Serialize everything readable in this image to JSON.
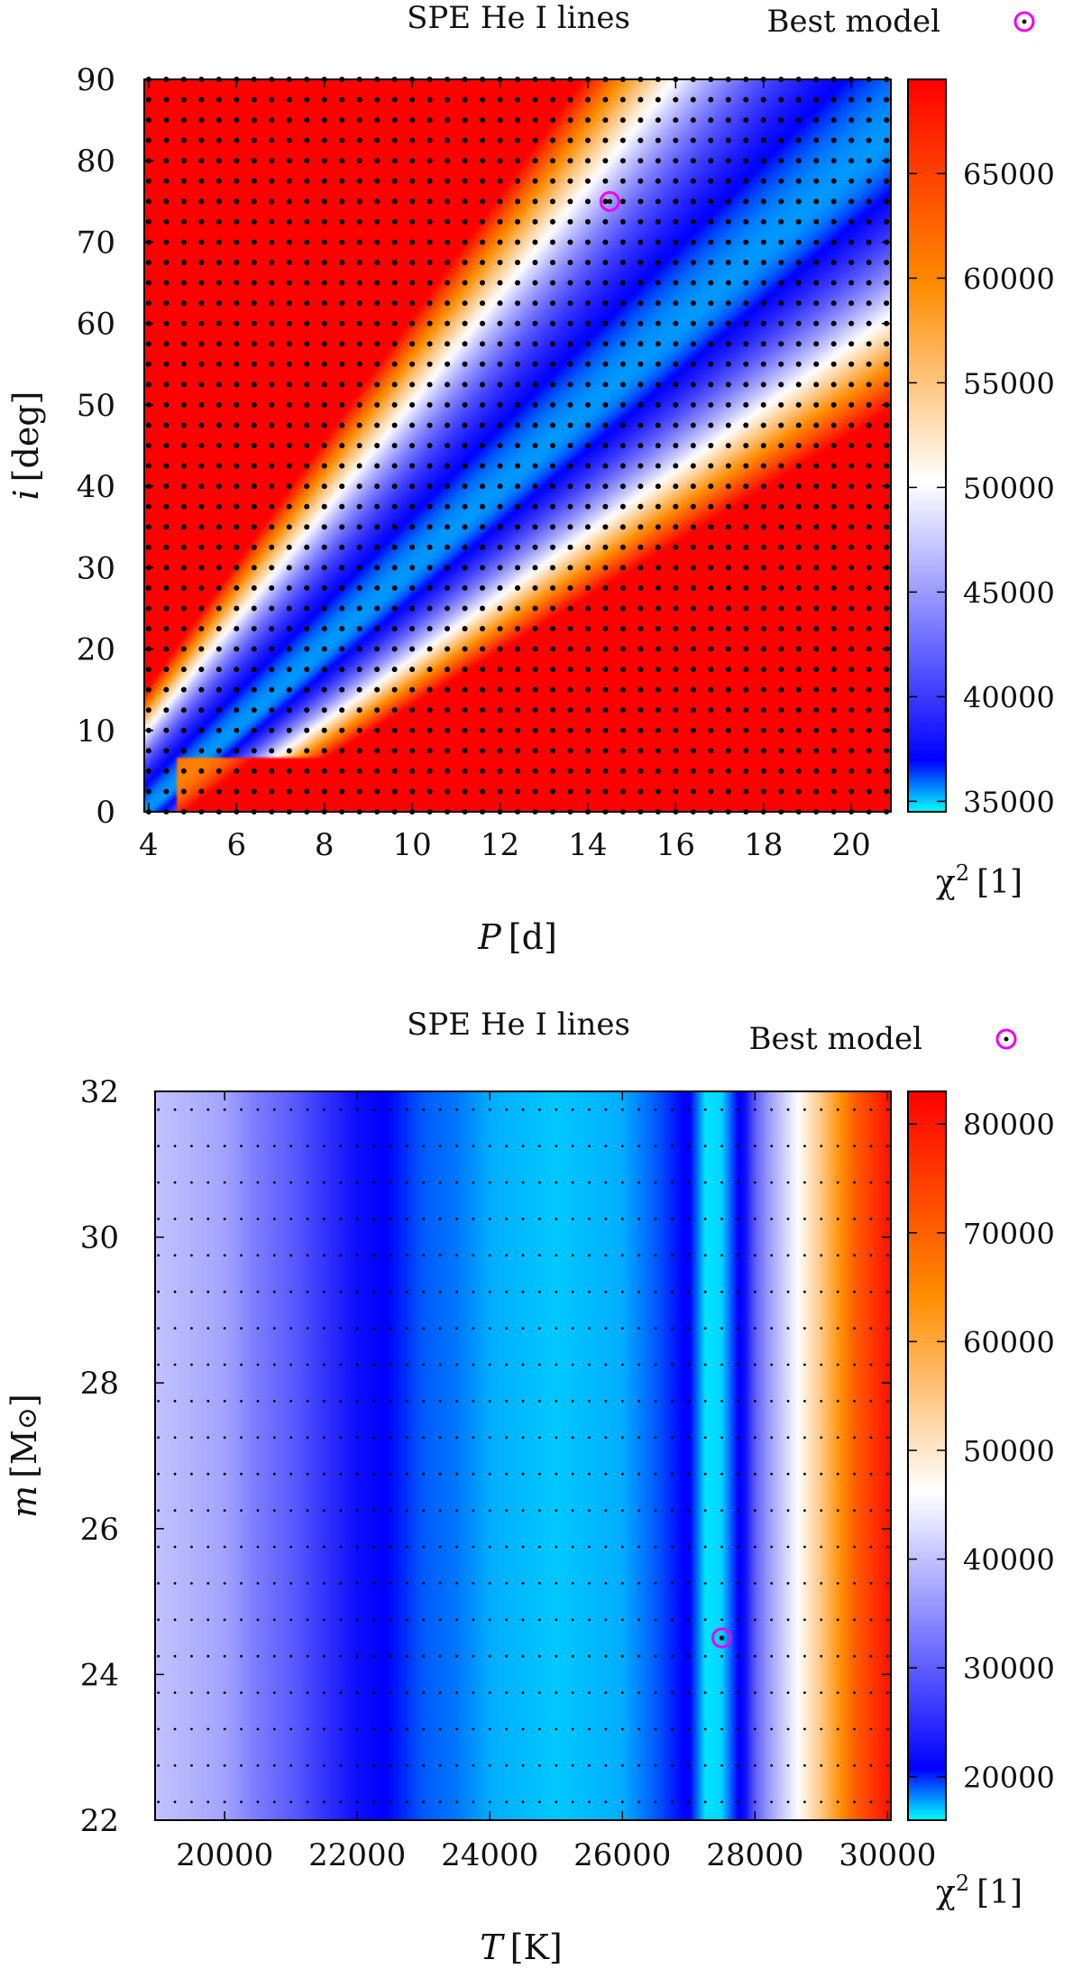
{
  "chart_data": [
    {
      "type": "heatmap",
      "title": "SPE He I lines",
      "legend_label": "Best model",
      "legend_placement": "top-right",
      "x": {
        "var": "P",
        "unit": "[d]",
        "range": [
          3.9,
          20.9
        ],
        "ticks": [
          "4",
          "6",
          "8",
          "10",
          "12",
          "14",
          "16",
          "18",
          "20"
        ],
        "tick_values": [
          4,
          6,
          8,
          10,
          12,
          14,
          16,
          18,
          20
        ]
      },
      "y": {
        "var": "i",
        "unit": "[deg]",
        "range": [
          0,
          90
        ],
        "ticks": [
          "0",
          "10",
          "20",
          "30",
          "40",
          "50",
          "60",
          "70",
          "80",
          "90"
        ],
        "tick_values": [
          0,
          10,
          20,
          30,
          40,
          50,
          60,
          70,
          80,
          90
        ]
      },
      "colorbar": {
        "var": "χ",
        "sup": "2",
        "unit": "[1]",
        "range": [
          34500,
          69500
        ],
        "ticks": [
          "35000",
          "40000",
          "45000",
          "50000",
          "55000",
          "60000",
          "65000"
        ],
        "tick_values": [
          35000,
          40000,
          45000,
          50000,
          55000,
          60000,
          65000
        ]
      },
      "grid_points": {
        "x_start": 4,
        "x_step": 0.4,
        "x_count": 43,
        "y_start": 0,
        "y_step": 2.5,
        "y_count": 37
      },
      "valley": {
        "description": "minimum χ² valley along i ≈ 0.37 + 4.9(P−4) deg"
      },
      "best_model": {
        "x": 14.5,
        "y": 75
      }
    },
    {
      "type": "heatmap",
      "title": "SPE He I lines",
      "legend_label": "Best model",
      "legend_placement": "top-right",
      "x": {
        "var": "T",
        "unit": "[K]",
        "range": [
          18950,
          30050
        ],
        "ticks": [
          "20000",
          "22000",
          "24000",
          "26000",
          "28000",
          "30000"
        ],
        "tick_values": [
          20000,
          22000,
          24000,
          26000,
          28000,
          30000
        ]
      },
      "y": {
        "var": "m",
        "unit": "[M",
        "unit_end": "]",
        "range": [
          22,
          32
        ],
        "ticks": [
          "22",
          "24",
          "26",
          "28",
          "30",
          "32"
        ],
        "tick_values": [
          22,
          24,
          26,
          28,
          30,
          32
        ]
      },
      "colorbar": {
        "var": "χ",
        "sup": "2",
        "unit": "[1]",
        "range": [
          16000,
          83000
        ],
        "ticks": [
          "20000",
          "30000",
          "40000",
          "50000",
          "60000",
          "70000",
          "80000"
        ],
        "tick_values": [
          20000,
          30000,
          40000,
          50000,
          60000,
          70000,
          80000
        ]
      },
      "grid_points": {
        "x_start": 19000,
        "x_step": 250,
        "x_count": 45,
        "y_start": 22.25,
        "y_step": 0.5,
        "y_count": 20
      },
      "profile_T": [
        19000,
        20000,
        20500,
        21000,
        21500,
        22000,
        23000,
        23500,
        24000,
        25000,
        26000,
        26500,
        27000,
        27250,
        27500,
        27700,
        27850,
        28000,
        28200,
        28600,
        29000,
        29500,
        30000
      ],
      "profile_chi2": [
        40000,
        37000,
        33000,
        30000,
        26000,
        22000,
        19000,
        18500,
        17500,
        17000,
        17500,
        19000,
        21000,
        16500,
        16800,
        20000,
        22000,
        30000,
        36000,
        45000,
        55000,
        70000,
        80000
      ],
      "best_model": {
        "x": 27500,
        "y": 24.5
      }
    }
  ]
}
